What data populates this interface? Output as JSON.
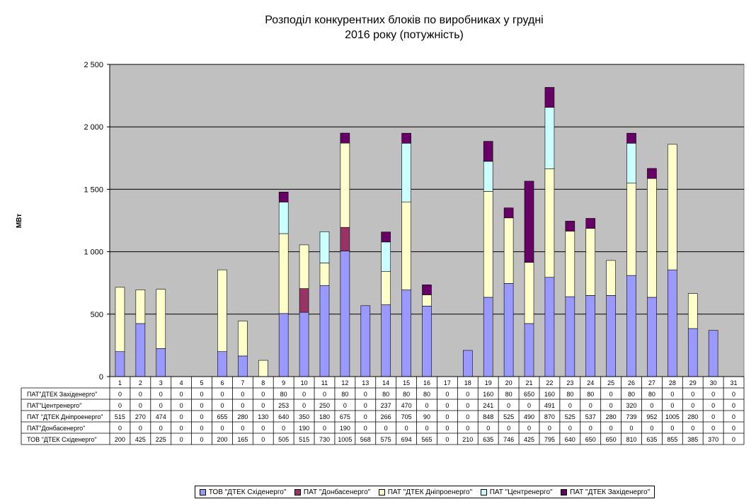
{
  "chart_data": {
    "type": "bar",
    "stacked": true,
    "title_line1": "Розподіл конкурентних  блоків по виробниках  у грудні",
    "title_line2": "2016 року  (потужність)",
    "ylabel": "МВт",
    "ylim": [
      0,
      2500
    ],
    "yticks": [
      0,
      500,
      1000,
      1500,
      2000,
      2500
    ],
    "ytick_labels": [
      "0",
      "500",
      "1 000",
      "1 500",
      "2 000",
      "2 500"
    ],
    "grid": true,
    "legend_position": "bottom",
    "categories": [
      "1",
      "2",
      "3",
      "4",
      "5",
      "6",
      "7",
      "8",
      "9",
      "10",
      "11",
      "12",
      "13",
      "14",
      "15",
      "16",
      "17",
      "18",
      "19",
      "20",
      "21",
      "22",
      "23",
      "24",
      "25",
      "26",
      "27",
      "28",
      "29",
      "30",
      "31"
    ],
    "series": [
      {
        "name": "ТОВ \"ДТЕК Східенерго\"",
        "table_label": "ТОВ \"ДТЕК Східенерго\"",
        "color": "#9999ff",
        "values": [
          200,
          425,
          225,
          0,
          0,
          200,
          165,
          0,
          505,
          515,
          730,
          1005,
          568,
          575,
          694,
          565,
          0,
          210,
          635,
          746,
          425,
          795,
          640,
          650,
          650,
          810,
          635,
          855,
          385,
          370,
          0
        ]
      },
      {
        "name": "ПАТ \"Донбасенерго\"",
        "table_label": "ПАТ\"Донбасенерго\"",
        "color": "#993366",
        "values": [
          0,
          0,
          0,
          0,
          0,
          0,
          0,
          0,
          0,
          190,
          0,
          190,
          0,
          0,
          0,
          0,
          0,
          0,
          0,
          0,
          0,
          0,
          0,
          0,
          0,
          0,
          0,
          0,
          0,
          0,
          0
        ]
      },
      {
        "name": "ПАТ \"ДТЕК Дніпроенерго\"",
        "table_label": "ПАТ \"ДТЕК Дніпроенерго\"",
        "color": "#ffffcc",
        "values": [
          515,
          270,
          474,
          0,
          0,
          655,
          280,
          130,
          640,
          350,
          180,
          675,
          0,
          266,
          705,
          90,
          0,
          0,
          848,
          525,
          490,
          870,
          525,
          537,
          280,
          739,
          952,
          1005,
          280,
          0,
          0
        ]
      },
      {
        "name": "ПАТ \"Центренерго\"",
        "table_label": "ПАТ\"Центренерго\"",
        "color": "#ccffff",
        "values": [
          0,
          0,
          0,
          0,
          0,
          0,
          0,
          0,
          253,
          0,
          250,
          0,
          0,
          237,
          470,
          0,
          0,
          0,
          241,
          0,
          0,
          491,
          0,
          0,
          0,
          320,
          0,
          0,
          0,
          0,
          0
        ]
      },
      {
        "name": "ПАТ \"ДТЕК Західенерго\"",
        "table_label": "ПАТ\"ДТЕК Західенерго\"",
        "color": "#660066",
        "values": [
          0,
          0,
          0,
          0,
          0,
          0,
          0,
          0,
          80,
          0,
          0,
          80,
          0,
          80,
          80,
          80,
          0,
          0,
          160,
          80,
          650,
          160,
          80,
          80,
          0,
          80,
          80,
          0,
          0,
          0,
          0
        ]
      }
    ],
    "table_row_order": [
      4,
      3,
      2,
      1,
      0
    ]
  }
}
